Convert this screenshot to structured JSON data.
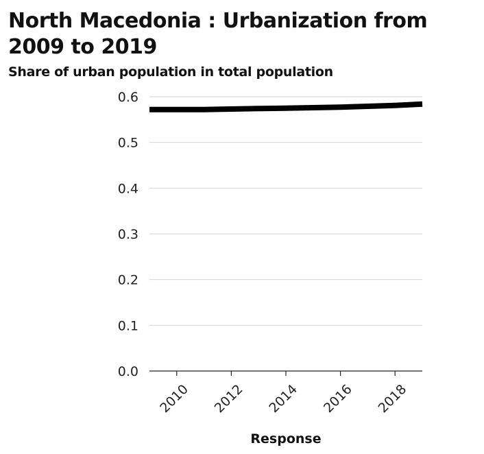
{
  "chart_data": {
    "type": "line",
    "title": "North Macedonia : Urbanization from 2009 to 2019",
    "ylabel": "Share of urban population in total population",
    "xlabel": "Response",
    "xlim": [
      2009,
      2019
    ],
    "ylim": [
      0,
      0.6
    ],
    "x_ticks": [
      "2010",
      "2012",
      "2014",
      "2016",
      "2018"
    ],
    "y_ticks": [
      "0.0",
      "0.1",
      "0.2",
      "0.3",
      "0.4",
      "0.5",
      "0.6"
    ],
    "grid": "horizontal",
    "series": [
      {
        "x": [
          2009,
          2010,
          2011,
          2012,
          2013,
          2014,
          2015,
          2016,
          2017,
          2018,
          2019
        ],
        "values": [
          0.572,
          0.572,
          0.572,
          0.573,
          0.574,
          0.575,
          0.576,
          0.577,
          0.579,
          0.581,
          0.584
        ],
        "color": "#000000"
      }
    ]
  }
}
